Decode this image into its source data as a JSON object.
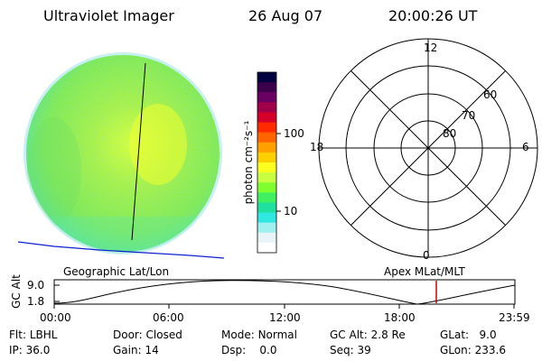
{
  "header": {
    "instrument": "Ultraviolet Imager",
    "date": "26 Aug 07",
    "time": "20:00:26 UT"
  },
  "colorbar": {
    "label": "photon cm⁻²s⁻¹",
    "tick_labels": [
      "100",
      "10"
    ],
    "colors": [
      "#000040",
      "#3a004a",
      "#6b0063",
      "#a0004a",
      "#d4002a",
      "#ff2a00",
      "#ff6600",
      "#ffa000",
      "#ffd000",
      "#ffff20",
      "#c8ff40",
      "#80ff30",
      "#40f060",
      "#20e0a0",
      "#30e8e0",
      "#a0f0f0",
      "#e8f4f8",
      "#ffffff"
    ]
  },
  "polar_plot": {
    "mlt_labels": {
      "top": "12",
      "left": "18",
      "right": "6",
      "bottom": "0"
    },
    "lat_labels": [
      "60",
      "70",
      "80"
    ]
  },
  "altitude_plot": {
    "left_title": "Geographic Lat/Lon",
    "right_title": "Apex MLat/MLT",
    "ylabel": "GC Alt",
    "yticks": [
      "9.0",
      "1.8"
    ],
    "xticks": [
      "00:00",
      "06:00",
      "12:00",
      "18:00",
      "23:59"
    ],
    "marker_color": "#d00000"
  },
  "status": {
    "row1": [
      {
        "key": "Flt:",
        "value": "LBHL"
      },
      {
        "key": "Door:",
        "value": "Closed"
      },
      {
        "key": "Mode:",
        "value": "Normal"
      },
      {
        "key": "GC Alt:",
        "value": "2.8 Re"
      },
      {
        "key": "GLat:",
        "value": "9.0"
      }
    ],
    "row2": [
      {
        "key": "IP:",
        "value": "36.0"
      },
      {
        "key": "Gain:",
        "value": "14"
      },
      {
        "key": "Dsp:",
        "value": "0.0"
      },
      {
        "key": "Seq:",
        "value": "39"
      },
      {
        "key": "GLon:",
        "value": "233.6"
      }
    ]
  }
}
